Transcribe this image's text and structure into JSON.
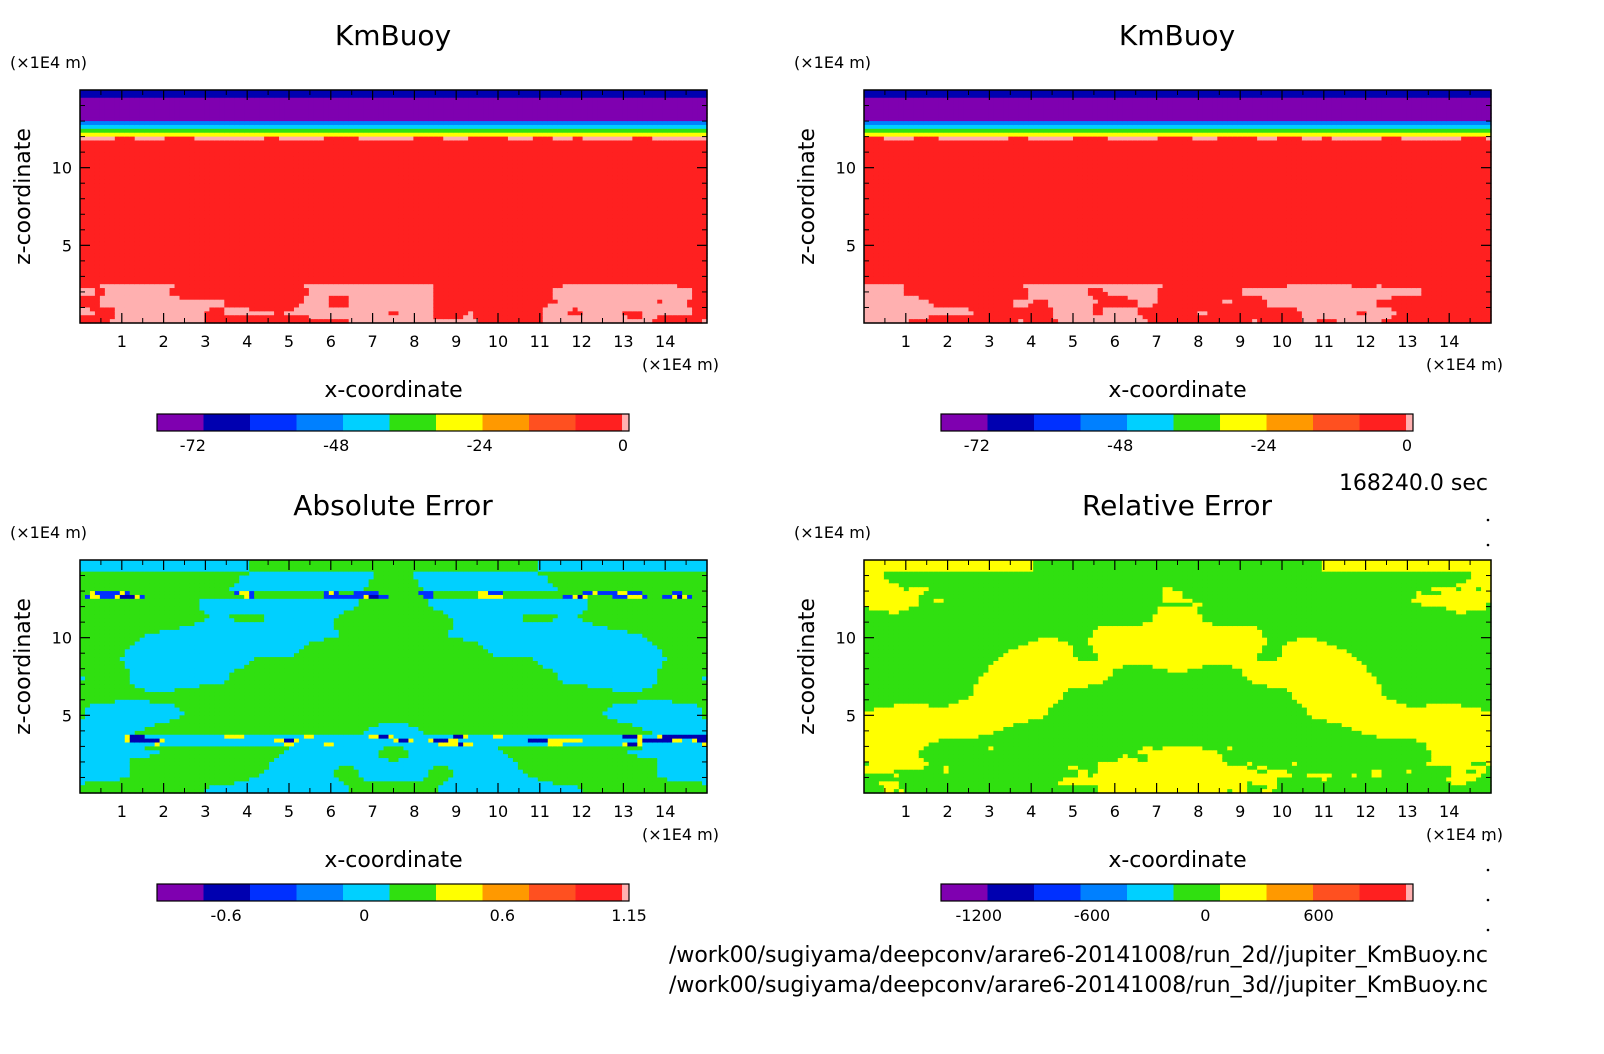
{
  "chart_data": [
    {
      "type": "heatmap",
      "title": "KmBuoy",
      "xlabel": "x-coordinate",
      "ylabel": "z-coordinate",
      "x_unit": "(×1E4 m)",
      "y_unit": "(×1E4 m)",
      "xlim": [
        0,
        15
      ],
      "ylim": [
        0,
        15
      ],
      "xticks": [
        "1",
        "2",
        "3",
        "4",
        "5",
        "6",
        "7",
        "8",
        "9",
        "10",
        "11",
        "12",
        "13",
        "14"
      ],
      "yticks": [
        "5",
        "10"
      ],
      "colorbar": {
        "colors": [
          "#7f00b0",
          "#0000b0",
          "#0030ff",
          "#0080ff",
          "#00d0ff",
          "#30e010",
          "#ffff00",
          "#ff9900",
          "#ff5020",
          "#ff2020",
          "#ffb0b0"
        ],
        "ticks": [
          "-72",
          "-48",
          "-24",
          "0"
        ],
        "tick_values": [
          -72,
          -48,
          -24,
          0
        ],
        "range": [
          -78,
          1
        ]
      },
      "bands": [
        {
          "z": [
            0,
            2.5
          ],
          "value": "near 0 (pink), patchy"
        },
        {
          "z": [
            2.5,
            12
          ],
          "value": "-2 to -6 (red)"
        },
        {
          "z": [
            12,
            13
          ],
          "value": "-24 to -48 (yellow/green/cyan)"
        },
        {
          "z": [
            13,
            15
          ],
          "value": "-72 to -78 (purple/navy)"
        }
      ]
    },
    {
      "type": "heatmap",
      "title": "KmBuoy",
      "xlabel": "x-coordinate",
      "ylabel": "z-coordinate",
      "x_unit": "(×1E4 m)",
      "y_unit": "(×1E4 m)",
      "xlim": [
        0,
        15
      ],
      "ylim": [
        0,
        15
      ],
      "xticks": [
        "1",
        "2",
        "3",
        "4",
        "5",
        "6",
        "7",
        "8",
        "9",
        "10",
        "11",
        "12",
        "13",
        "14"
      ],
      "yticks": [
        "5",
        "10"
      ],
      "colorbar": {
        "colors": [
          "#7f00b0",
          "#0000b0",
          "#0030ff",
          "#0080ff",
          "#00d0ff",
          "#30e010",
          "#ffff00",
          "#ff9900",
          "#ff5020",
          "#ff2020",
          "#ffb0b0"
        ],
        "ticks": [
          "-72",
          "-48",
          "-24",
          "0"
        ],
        "tick_values": [
          -72,
          -48,
          -24,
          0
        ],
        "range": [
          -78,
          1
        ]
      },
      "bands": [
        {
          "z": [
            0,
            2.5
          ],
          "value": "near 0 (pink), patchy"
        },
        {
          "z": [
            2.5,
            12
          ],
          "value": "-2 to -6 (red)"
        },
        {
          "z": [
            12,
            13
          ],
          "value": "-24 to -48 (yellow/green/cyan)"
        },
        {
          "z": [
            13,
            15
          ],
          "value": "-72 to -78 (purple/navy)"
        }
      ]
    },
    {
      "type": "heatmap",
      "title": "Absolute Error",
      "xlabel": "x-coordinate",
      "ylabel": "z-coordinate",
      "x_unit": "(×1E4 m)",
      "y_unit": "(×1E4 m)",
      "xlim": [
        0,
        15
      ],
      "ylim": [
        0,
        15
      ],
      "xticks": [
        "1",
        "2",
        "3",
        "4",
        "5",
        "6",
        "7",
        "8",
        "9",
        "10",
        "11",
        "12",
        "13",
        "14"
      ],
      "yticks": [
        "5",
        "10"
      ],
      "colorbar": {
        "colors": [
          "#7f00b0",
          "#0000b0",
          "#0030ff",
          "#0080ff",
          "#00d0ff",
          "#30e010",
          "#ffff00",
          "#ff9900",
          "#ff5020",
          "#ff2020",
          "#ffb0b0"
        ],
        "ticks": [
          "-0.6",
          "0",
          "0.6",
          "1.15"
        ],
        "tick_values": [
          -0.6,
          0,
          0.6,
          1.15
        ],
        "range": [
          -0.9,
          1.15
        ]
      },
      "dominant_values": "mostly between -0.2 and 0.2 (cyan/green), with small extremes near z=3 and z=13"
    },
    {
      "type": "heatmap",
      "title": "Relative Error",
      "xlabel": "x-coordinate",
      "ylabel": "z-coordinate",
      "x_unit": "(×1E4 m)",
      "y_unit": "(×1E4 m)",
      "xlim": [
        0,
        15
      ],
      "ylim": [
        0,
        15
      ],
      "xticks": [
        "1",
        "2",
        "3",
        "4",
        "5",
        "6",
        "7",
        "8",
        "9",
        "10",
        "11",
        "12",
        "13",
        "14"
      ],
      "yticks": [
        "5",
        "10"
      ],
      "colorbar": {
        "colors": [
          "#7f00b0",
          "#0000b0",
          "#0030ff",
          "#0080ff",
          "#00d0ff",
          "#30e010",
          "#ffff00",
          "#ff9900",
          "#ff5020",
          "#ff2020",
          "#ffb0b0"
        ],
        "ticks": [
          "-1200",
          "-600",
          "0",
          "600"
        ],
        "tick_values": [
          -1200,
          -600,
          0,
          600
        ],
        "range": [
          -1400,
          1100
        ]
      },
      "dominant_values": "mostly between -200 and 200 (green/yellow)"
    }
  ],
  "time_label": "168240.0 sec",
  "files": [
    "/work00/sugiyama/deepconv/arare6-20141008/run_2d//jupiter_KmBuoy.nc",
    "/work00/sugiyama/deepconv/arare6-20141008/run_3d//jupiter_KmBuoy.nc"
  ]
}
